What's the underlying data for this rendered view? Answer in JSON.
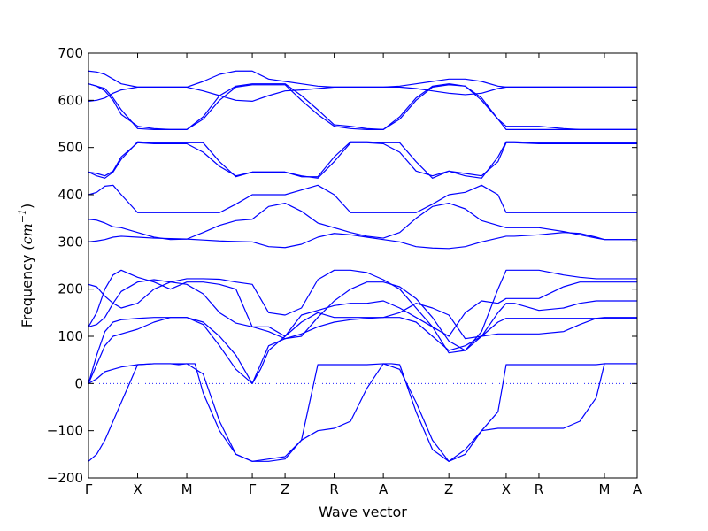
{
  "chart_data": {
    "type": "line",
    "xlabel": "Wave vector",
    "ylabel": {
      "text": "Frequency",
      "unit": "(cm",
      "exponent": "−1",
      "close": ")"
    },
    "ylim": [
      -200,
      700
    ],
    "xlim": [
      0,
      7
    ],
    "yticks": [
      -200,
      -100,
      0,
      100,
      200,
      300,
      400,
      500,
      600,
      700
    ],
    "xticks": [
      {
        "label": "Γ",
        "x": 0
      },
      {
        "label": "X",
        "x": 0.3
      },
      {
        "label": "M",
        "x": 0.6
      },
      {
        "label": "Γ",
        "x": 1.0
      },
      {
        "label": "Z",
        "x": 1.2
      },
      {
        "label": "R",
        "x": 1.5
      },
      {
        "label": "A",
        "x": 1.8
      },
      {
        "label": "Z",
        "x": 2.2
      },
      {
        "label": "X",
        "x": 2.55
      },
      {
        "label": "R",
        "x": 2.75
      },
      {
        "label": "M",
        "x": 3.15
      },
      {
        "label": "A",
        "x": 3.35
      }
    ],
    "zero_line": true,
    "line_color": "#0000ff",
    "zero_line_color": "#0000ff",
    "series": [
      {
        "x": [
          0,
          0.05,
          0.1,
          0.15,
          0.2,
          0.3,
          0.4,
          0.5,
          0.6,
          0.7,
          0.8,
          0.9,
          1.0,
          1.1,
          1.2,
          1.3,
          1.4,
          1.5,
          1.6,
          1.7,
          1.8,
          1.9,
          2.0,
          2.1,
          2.2,
          2.3,
          2.4,
          2.5,
          2.55,
          2.6,
          2.75,
          2.9,
          3.0,
          3.1,
          3.15,
          3.25,
          3.35
        ],
        "y": [
          0,
          10,
          25,
          30,
          35,
          40,
          42,
          42,
          42,
          20,
          -80,
          -150,
          -165,
          -160,
          -155,
          -120,
          -100,
          -95,
          -80,
          -10,
          42,
          30,
          -40,
          -120,
          -165,
          -150,
          -100,
          -60,
          40,
          40,
          40,
          40,
          40,
          40,
          42,
          42,
          42
        ]
      },
      {
        "x": [
          0,
          0.05,
          0.1,
          0.15,
          0.2,
          0.25,
          0.3,
          0.4,
          0.5,
          0.55,
          0.6,
          0.65,
          0.7,
          0.8,
          0.9,
          1.0,
          1.05,
          1.1,
          1.2,
          1.3,
          1.4,
          1.5,
          1.6,
          1.7,
          1.8,
          1.85,
          1.9,
          2.0,
          2.1,
          2.2,
          2.3,
          2.4,
          2.5,
          2.55,
          2.6,
          2.75,
          2.9,
          3.0,
          3.1,
          3.15,
          3.2,
          3.35
        ],
        "y": [
          -165,
          -150,
          -120,
          -80,
          -40,
          0,
          40,
          42,
          42,
          40,
          42,
          42,
          -20,
          -100,
          -150,
          -165,
          -165,
          -165,
          -160,
          -120,
          40,
          40,
          40,
          40,
          42,
          42,
          40,
          -60,
          -140,
          -165,
          -140,
          -100,
          -95,
          -95,
          -95,
          -95,
          -95,
          -80,
          -30,
          42,
          42,
          42
        ]
      },
      {
        "x": [
          0,
          0.05,
          0.1,
          0.15,
          0.2,
          0.3,
          0.4,
          0.5,
          0.6,
          0.7,
          0.8,
          0.9,
          1.0,
          1.05,
          1.1,
          1.2,
          1.3,
          1.4,
          1.5,
          1.6,
          1.7,
          1.8,
          1.9,
          2.0,
          2.1,
          2.2,
          2.3,
          2.4,
          2.5,
          2.55,
          2.6,
          2.75,
          2.9,
          3.0,
          3.1,
          3.15,
          3.35
        ],
        "y": [
          0,
          40,
          80,
          100,
          105,
          115,
          130,
          140,
          140,
          125,
          80,
          30,
          0,
          30,
          70,
          100,
          130,
          150,
          140,
          140,
          140,
          140,
          140,
          130,
          100,
          70,
          80,
          100,
          105,
          105,
          105,
          105,
          110,
          125,
          138,
          140,
          140
        ]
      },
      {
        "x": [
          0,
          0.05,
          0.1,
          0.15,
          0.2,
          0.3,
          0.4,
          0.5,
          0.6,
          0.7,
          0.8,
          0.9,
          1.0,
          1.05,
          1.1,
          1.2,
          1.3,
          1.4,
          1.5,
          1.6,
          1.7,
          1.8,
          1.9,
          2.0,
          2.1,
          2.2,
          2.3,
          2.4,
          2.5,
          2.55,
          2.6,
          2.75,
          2.9,
          3.0,
          3.1,
          3.15,
          3.35
        ],
        "y": [
          0,
          60,
          110,
          130,
          135,
          138,
          140,
          140,
          140,
          130,
          100,
          60,
          0,
          40,
          80,
          95,
          105,
          120,
          130,
          135,
          138,
          140,
          150,
          170,
          160,
          145,
          95,
          100,
          130,
          138,
          138,
          138,
          138,
          138,
          138,
          138,
          138
        ]
      },
      {
        "x": [
          0,
          0.05,
          0.1,
          0.15,
          0.2,
          0.3,
          0.4,
          0.5,
          0.6,
          0.7,
          0.8,
          0.9,
          1.0,
          1.1,
          1.2,
          1.3,
          1.4,
          1.5,
          1.6,
          1.7,
          1.8,
          1.9,
          2.0,
          2.1,
          2.2,
          2.3,
          2.4,
          2.5,
          2.55,
          2.6,
          2.75,
          2.9,
          3.0,
          3.1,
          3.15,
          3.35
        ],
        "y": [
          120,
          125,
          140,
          170,
          195,
          215,
          220,
          215,
          210,
          190,
          150,
          128,
          120,
          110,
          95,
          100,
          140,
          175,
          200,
          215,
          215,
          205,
          180,
          140,
          90,
          70,
          100,
          150,
          170,
          170,
          155,
          160,
          170,
          175,
          175,
          175
        ]
      },
      {
        "x": [
          0,
          0.05,
          0.1,
          0.15,
          0.2,
          0.3,
          0.4,
          0.5,
          0.6,
          0.7,
          0.8,
          0.9,
          1.0,
          1.1,
          1.2,
          1.3,
          1.4,
          1.5,
          1.6,
          1.7,
          1.8,
          1.9,
          2.0,
          2.1,
          2.2,
          2.3,
          2.4,
          2.5,
          2.55,
          2.6,
          2.75,
          2.9,
          3.0,
          3.1,
          3.15,
          3.35
        ],
        "y": [
          120,
          150,
          200,
          230,
          240,
          225,
          215,
          200,
          215,
          215,
          210,
          200,
          120,
          120,
          100,
          145,
          155,
          165,
          170,
          170,
          175,
          160,
          140,
          120,
          100,
          150,
          175,
          170,
          180,
          180,
          180,
          205,
          215,
          215,
          215,
          215
        ]
      },
      {
        "x": [
          0,
          0.05,
          0.1,
          0.15,
          0.2,
          0.3,
          0.4,
          0.5,
          0.6,
          0.7,
          0.8,
          0.9,
          1.0,
          1.1,
          1.2,
          1.3,
          1.4,
          1.5,
          1.6,
          1.7,
          1.8,
          1.9,
          2.0,
          2.1,
          2.2,
          2.3,
          2.4,
          2.5,
          2.55,
          2.6,
          2.75,
          2.9,
          3.0,
          3.1,
          3.15,
          3.35
        ],
        "y": [
          210,
          205,
          185,
          170,
          160,
          170,
          200,
          215,
          222,
          222,
          221,
          215,
          210,
          150,
          145,
          160,
          220,
          240,
          240,
          235,
          220,
          200,
          160,
          120,
          65,
          70,
          110,
          200,
          240,
          240,
          240,
          230,
          225,
          222,
          222,
          222
        ]
      },
      {
        "x": [
          0,
          0.05,
          0.1,
          0.15,
          0.2,
          0.3,
          0.4,
          0.5,
          0.6,
          0.7,
          0.8,
          0.9,
          1.0,
          1.1,
          1.2,
          1.3,
          1.4,
          1.5,
          1.6,
          1.7,
          1.8,
          1.9,
          2.0,
          2.1,
          2.2,
          2.3,
          2.4,
          2.5,
          2.55,
          2.6,
          2.75,
          2.9,
          3.0,
          3.1,
          3.15,
          3.35
        ],
        "y": [
          300,
          302,
          305,
          310,
          312,
          310,
          308,
          307,
          306,
          304,
          302,
          301,
          300,
          290,
          288,
          295,
          310,
          318,
          315,
          310,
          305,
          300,
          290,
          287,
          286,
          290,
          300,
          308,
          312,
          312,
          315,
          320,
          318,
          310,
          305,
          305
        ]
      },
      {
        "x": [
          0,
          0.05,
          0.1,
          0.15,
          0.2,
          0.3,
          0.4,
          0.5,
          0.6,
          0.7,
          0.8,
          0.9,
          1.0,
          1.1,
          1.2,
          1.3,
          1.4,
          1.5,
          1.6,
          1.7,
          1.8,
          1.9,
          2.0,
          2.1,
          2.2,
          2.3,
          2.4,
          2.5,
          2.55,
          2.6,
          2.75,
          2.9,
          3.0,
          3.1,
          3.15,
          3.35
        ],
        "y": [
          348,
          346,
          340,
          332,
          330,
          320,
          310,
          305,
          306,
          320,
          335,
          345,
          348,
          375,
          382,
          365,
          340,
          330,
          320,
          312,
          308,
          320,
          350,
          375,
          382,
          370,
          345,
          335,
          330,
          330,
          330,
          322,
          315,
          308,
          305,
          305
        ]
      },
      {
        "x": [
          0,
          0.05,
          0.1,
          0.15,
          0.2,
          0.3,
          0.4,
          0.5,
          0.6,
          0.7,
          0.8,
          0.9,
          1.0,
          1.1,
          1.2,
          1.3,
          1.4,
          1.5,
          1.6,
          1.7,
          1.8,
          1.9,
          2.0,
          2.1,
          2.2,
          2.3,
          2.4,
          2.5,
          2.55,
          2.6,
          2.75,
          2.9,
          3.0,
          3.1,
          3.15,
          3.35
        ],
        "y": [
          400,
          405,
          418,
          420,
          400,
          362,
          362,
          362,
          362,
          362,
          362,
          380,
          400,
          400,
          400,
          410,
          420,
          400,
          362,
          362,
          362,
          362,
          362,
          380,
          400,
          405,
          420,
          400,
          362,
          362,
          362,
          362,
          362,
          362,
          362,
          362
        ]
      },
      {
        "x": [
          0,
          0.05,
          0.1,
          0.15,
          0.2,
          0.3,
          0.4,
          0.5,
          0.6,
          0.7,
          0.8,
          0.9,
          1.0,
          1.1,
          1.2,
          1.3,
          1.4,
          1.5,
          1.6,
          1.7,
          1.8,
          1.9,
          2.0,
          2.1,
          2.2,
          2.3,
          2.4,
          2.5,
          2.55,
          2.6,
          2.75,
          2.9,
          3.0,
          3.1,
          3.15,
          3.35
        ],
        "y": [
          448,
          445,
          440,
          450,
          480,
          510,
          508,
          508,
          508,
          490,
          460,
          440,
          448,
          448,
          448,
          440,
          435,
          470,
          510,
          510,
          508,
          490,
          450,
          440,
          450,
          445,
          440,
          470,
          510,
          510,
          508,
          508,
          508,
          508,
          508,
          508
        ]
      },
      {
        "x": [
          0,
          0.05,
          0.1,
          0.15,
          0.2,
          0.3,
          0.4,
          0.5,
          0.6,
          0.7,
          0.8,
          0.9,
          1.0,
          1.1,
          1.2,
          1.3,
          1.4,
          1.5,
          1.6,
          1.7,
          1.8,
          1.9,
          2.0,
          2.1,
          2.2,
          2.3,
          2.4,
          2.5,
          2.55,
          2.6,
          2.75,
          2.9,
          3.0,
          3.1,
          3.15,
          3.35
        ],
        "y": [
          448,
          440,
          435,
          448,
          475,
          512,
          510,
          510,
          510,
          510,
          470,
          438,
          448,
          448,
          448,
          438,
          438,
          480,
          512,
          512,
          510,
          510,
          470,
          435,
          450,
          440,
          435,
          480,
          512,
          512,
          510,
          510,
          510,
          510,
          510,
          510
        ]
      },
      {
        "x": [
          0,
          0.05,
          0.1,
          0.15,
          0.2,
          0.3,
          0.4,
          0.5,
          0.6,
          0.7,
          0.8,
          0.9,
          1.0,
          1.1,
          1.2,
          1.3,
          1.4,
          1.5,
          1.6,
          1.7,
          1.8,
          1.9,
          2.0,
          2.1,
          2.2,
          2.3,
          2.4,
          2.5,
          2.55,
          2.6,
          2.75,
          2.9,
          3.0,
          3.1,
          3.15,
          3.35
        ],
        "y": [
          635,
          630,
          620,
          600,
          570,
          545,
          540,
          538,
          538,
          560,
          600,
          628,
          633,
          633,
          633,
          600,
          570,
          545,
          540,
          538,
          538,
          560,
          600,
          628,
          633,
          630,
          600,
          560,
          545,
          545,
          545,
          540,
          538,
          538,
          538,
          538
        ]
      },
      {
        "x": [
          0,
          0.05,
          0.1,
          0.15,
          0.2,
          0.3,
          0.4,
          0.5,
          0.6,
          0.7,
          0.8,
          0.9,
          1.0,
          1.1,
          1.2,
          1.3,
          1.4,
          1.5,
          1.6,
          1.7,
          1.8,
          1.9,
          2.0,
          2.1,
          2.2,
          2.3,
          2.4,
          2.5,
          2.55,
          2.6,
          2.75,
          2.9,
          3.0,
          3.1,
          3.15,
          3.35
        ],
        "y": [
          635,
          630,
          625,
          605,
          580,
          540,
          538,
          538,
          538,
          565,
          610,
          630,
          635,
          635,
          635,
          610,
          580,
          548,
          545,
          540,
          538,
          565,
          605,
          630,
          635,
          630,
          605,
          560,
          538,
          538,
          538,
          538,
          538,
          538,
          538,
          538
        ]
      },
      {
        "x": [
          0,
          0.05,
          0.1,
          0.15,
          0.2,
          0.3,
          0.4,
          0.5,
          0.6,
          0.7,
          0.8,
          0.9,
          1.0,
          1.1,
          1.2,
          1.3,
          1.4,
          1.5,
          1.6,
          1.7,
          1.8,
          1.9,
          2.0,
          2.1,
          2.2,
          2.3,
          2.4,
          2.5,
          2.55,
          2.6,
          2.75,
          2.9,
          3.0,
          3.1,
          3.15,
          3.35
        ],
        "y": [
          598,
          600,
          605,
          615,
          622,
          628,
          628,
          628,
          628,
          620,
          610,
          600,
          598,
          610,
          620,
          622,
          625,
          628,
          628,
          628,
          628,
          630,
          635,
          640,
          645,
          645,
          640,
          630,
          628,
          628,
          628,
          628,
          628,
          628,
          628,
          628
        ]
      },
      {
        "x": [
          0,
          0.05,
          0.1,
          0.15,
          0.2,
          0.3,
          0.4,
          0.5,
          0.6,
          0.7,
          0.8,
          0.9,
          1.0,
          1.1,
          1.2,
          1.3,
          1.4,
          1.5,
          1.6,
          1.7,
          1.8,
          1.9,
          2.0,
          2.1,
          2.2,
          2.3,
          2.4,
          2.5,
          2.55,
          2.6,
          2.75,
          2.9,
          3.0,
          3.1,
          3.15,
          3.35
        ],
        "y": [
          662,
          660,
          655,
          645,
          635,
          628,
          628,
          628,
          628,
          640,
          655,
          662,
          662,
          645,
          640,
          635,
          630,
          628,
          628,
          628,
          628,
          628,
          625,
          620,
          615,
          612,
          615,
          625,
          628,
          628,
          628,
          628,
          628,
          628,
          628,
          628
        ]
      }
    ]
  }
}
